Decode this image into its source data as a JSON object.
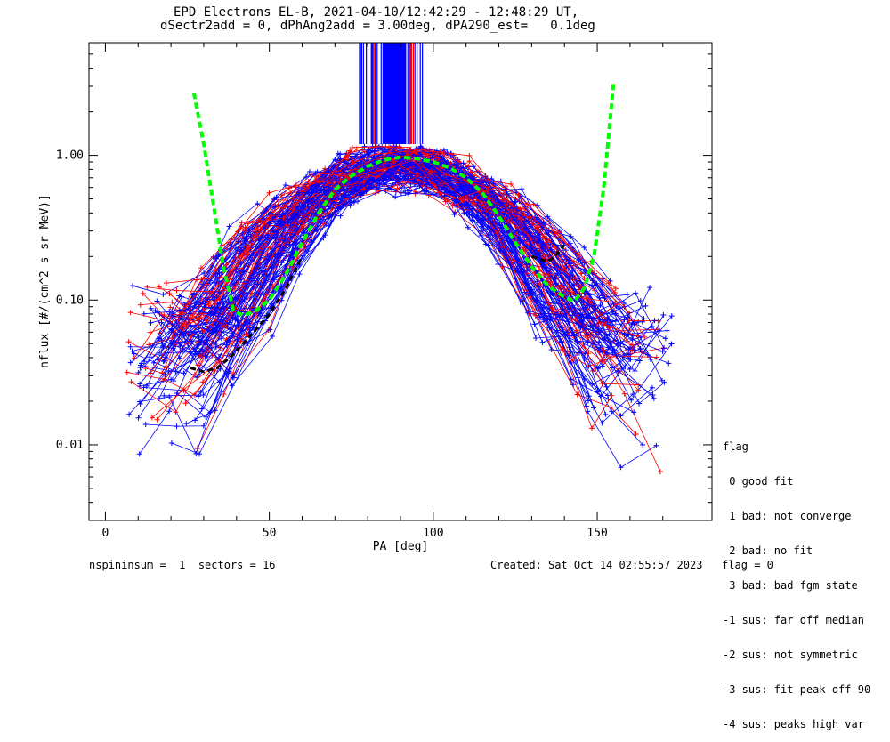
{
  "chart_data": {
    "type": "line",
    "title": "EPD Electrons EL-B, 2021-04-10/12:42:29 - 12:48:29 UT,",
    "subtitle": "dSectr2add = 0, dPhAng2add = 3.00deg, dPA290_est=   0.1deg",
    "xlabel": "PA [deg]",
    "ylabel": "nflux [#/(cm^2 s sr MeV)]",
    "xlim": [
      -5,
      185
    ],
    "ylim": [
      0.003,
      6
    ],
    "yscale": "log",
    "x_ticks": [
      0,
      50,
      100,
      150
    ],
    "x_tick_labels": [
      "0",
      "50",
      "100",
      "150"
    ],
    "y_ticks": [
      0.01,
      0.1,
      1.0
    ],
    "y_tick_labels": [
      "0.01",
      "0.10",
      "1.00"
    ],
    "series": [
      {
        "color": "#00ff00",
        "style": "dashed",
        "x": [
          27,
          30,
          33,
          36,
          39,
          42,
          46,
          50,
          55,
          60,
          65,
          70,
          75,
          80,
          85,
          90,
          95,
          100,
          105,
          110,
          115,
          120,
          125,
          130,
          135,
          140,
          143,
          146,
          149,
          152,
          155
        ],
        "y": [
          2.7,
          1.2,
          0.45,
          0.17,
          0.085,
          0.078,
          0.085,
          0.1,
          0.15,
          0.25,
          0.4,
          0.58,
          0.72,
          0.84,
          0.93,
          0.97,
          0.95,
          0.9,
          0.82,
          0.7,
          0.55,
          0.38,
          0.25,
          0.17,
          0.125,
          0.105,
          0.098,
          0.12,
          0.2,
          0.6,
          3.2
        ]
      },
      {
        "color": "#000000",
        "style": "dashed",
        "x": [
          26,
          30,
          34,
          38,
          42,
          46,
          50,
          55,
          60
        ],
        "y": [
          0.034,
          0.032,
          0.034,
          0.04,
          0.05,
          0.063,
          0.08,
          0.12,
          0.2
        ]
      },
      {
        "color": "#000000",
        "style": "dashed",
        "x": [
          130,
          133,
          135,
          137,
          140
        ],
        "y": [
          0.2,
          0.19,
          0.185,
          0.2,
          0.24
        ]
      }
    ],
    "legend": {
      "placement": "bottom-right",
      "title": "flag",
      "entries": [
        " 0 good fit",
        " 1 bad: not converge",
        " 2 bad: no fit",
        " 3 bad: bad fgm state",
        "-1 sus: far off median",
        "-2 sus: not symmetric",
        "-3 sus: fit peak off 90",
        "-4 sus: peaks high var"
      ]
    },
    "footer_left": "nspininsum =  1  sectors = 16",
    "footer_right": "Created: Sat Oct 14 02:55:57 2023   flag = 0",
    "colors": {
      "red": "#ff0000",
      "blue": "#0000ff",
      "green": "#00ff00",
      "black": "#000000"
    }
  }
}
